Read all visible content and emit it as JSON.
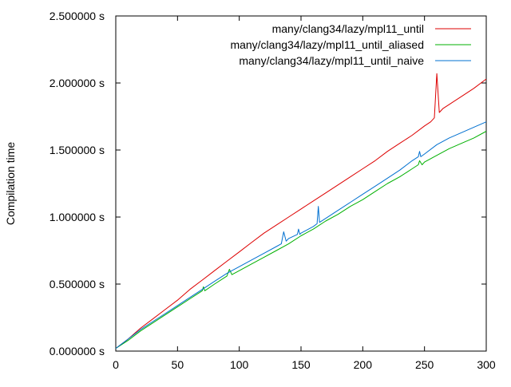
{
  "chart_data": {
    "type": "line",
    "title": "",
    "xlabel": "",
    "ylabel": "Compilation time",
    "xlim": [
      0,
      300
    ],
    "ylim": [
      0.0,
      2.5
    ],
    "x_ticks": [
      0,
      50,
      100,
      150,
      200,
      250,
      300
    ],
    "x_tick_labels": [
      "0",
      "50",
      "100",
      "150",
      "200",
      "250",
      "300"
    ],
    "y_ticks": [
      0.0,
      0.5,
      1.0,
      1.5,
      2.0,
      2.5
    ],
    "y_tick_labels": [
      "0.000000 s",
      "0.500000 s",
      "1.000000 s",
      "1.500000 s",
      "2.000000 s",
      "2.500000 s"
    ],
    "grid": false,
    "legend_position": "top-right",
    "series": [
      {
        "name": "many/clang34/lazy/mpl11_until",
        "color": "#dd0000",
        "points": [
          [
            0,
            0.02
          ],
          [
            10,
            0.09
          ],
          [
            20,
            0.17
          ],
          [
            30,
            0.24
          ],
          [
            40,
            0.31
          ],
          [
            50,
            0.38
          ],
          [
            60,
            0.46
          ],
          [
            70,
            0.53
          ],
          [
            80,
            0.6
          ],
          [
            90,
            0.67
          ],
          [
            100,
            0.74
          ],
          [
            110,
            0.81
          ],
          [
            120,
            0.88
          ],
          [
            130,
            0.94
          ],
          [
            140,
            1.0
          ],
          [
            150,
            1.06
          ],
          [
            160,
            1.12
          ],
          [
            170,
            1.18
          ],
          [
            180,
            1.24
          ],
          [
            190,
            1.3
          ],
          [
            200,
            1.36
          ],
          [
            210,
            1.42
          ],
          [
            220,
            1.49
          ],
          [
            230,
            1.55
          ],
          [
            240,
            1.61
          ],
          [
            250,
            1.68
          ],
          [
            255,
            1.71
          ],
          [
            258,
            1.74
          ],
          [
            260,
            2.07
          ],
          [
            262,
            1.78
          ],
          [
            265,
            1.81
          ],
          [
            270,
            1.84
          ],
          [
            280,
            1.9
          ],
          [
            290,
            1.96
          ],
          [
            300,
            2.03
          ]
        ]
      },
      {
        "name": "many/clang34/lazy/mpl11_until_aliased",
        "color": "#00b000",
        "points": [
          [
            0,
            0.02
          ],
          [
            10,
            0.08
          ],
          [
            20,
            0.15
          ],
          [
            30,
            0.21
          ],
          [
            40,
            0.27
          ],
          [
            50,
            0.33
          ],
          [
            60,
            0.39
          ],
          [
            70,
            0.45
          ],
          [
            71,
            0.48
          ],
          [
            72,
            0.45
          ],
          [
            80,
            0.5
          ],
          [
            90,
            0.56
          ],
          [
            92,
            0.61
          ],
          [
            94,
            0.57
          ],
          [
            100,
            0.6
          ],
          [
            110,
            0.65
          ],
          [
            120,
            0.7
          ],
          [
            130,
            0.75
          ],
          [
            140,
            0.8
          ],
          [
            150,
            0.86
          ],
          [
            160,
            0.91
          ],
          [
            170,
            0.97
          ],
          [
            180,
            1.02
          ],
          [
            190,
            1.08
          ],
          [
            200,
            1.13
          ],
          [
            210,
            1.19
          ],
          [
            220,
            1.25
          ],
          [
            230,
            1.3
          ],
          [
            240,
            1.36
          ],
          [
            245,
            1.39
          ],
          [
            246,
            1.42
          ],
          [
            248,
            1.39
          ],
          [
            250,
            1.41
          ],
          [
            260,
            1.46
          ],
          [
            270,
            1.51
          ],
          [
            280,
            1.55
          ],
          [
            290,
            1.59
          ],
          [
            300,
            1.64
          ]
        ]
      },
      {
        "name": "many/clang34/lazy/mpl11_until_naive",
        "color": "#0070d0",
        "points": [
          [
            0,
            0.02
          ],
          [
            10,
            0.09
          ],
          [
            20,
            0.16
          ],
          [
            30,
            0.22
          ],
          [
            40,
            0.28
          ],
          [
            50,
            0.34
          ],
          [
            60,
            0.4
          ],
          [
            70,
            0.46
          ],
          [
            80,
            0.52
          ],
          [
            90,
            0.58
          ],
          [
            100,
            0.63
          ],
          [
            110,
            0.68
          ],
          [
            120,
            0.73
          ],
          [
            130,
            0.78
          ],
          [
            134,
            0.8
          ],
          [
            136,
            0.89
          ],
          [
            138,
            0.82
          ],
          [
            140,
            0.84
          ],
          [
            147,
            0.87
          ],
          [
            148,
            0.91
          ],
          [
            149,
            0.87
          ],
          [
            150,
            0.88
          ],
          [
            160,
            0.93
          ],
          [
            163,
            0.95
          ],
          [
            164,
            1.08
          ],
          [
            165,
            0.96
          ],
          [
            170,
            0.99
          ],
          [
            180,
            1.05
          ],
          [
            190,
            1.11
          ],
          [
            200,
            1.17
          ],
          [
            210,
            1.23
          ],
          [
            220,
            1.29
          ],
          [
            230,
            1.35
          ],
          [
            240,
            1.42
          ],
          [
            245,
            1.45
          ],
          [
            246,
            1.49
          ],
          [
            247,
            1.45
          ],
          [
            250,
            1.47
          ],
          [
            260,
            1.54
          ],
          [
            270,
            1.59
          ],
          [
            280,
            1.63
          ],
          [
            290,
            1.67
          ],
          [
            300,
            1.71
          ]
        ]
      }
    ]
  }
}
